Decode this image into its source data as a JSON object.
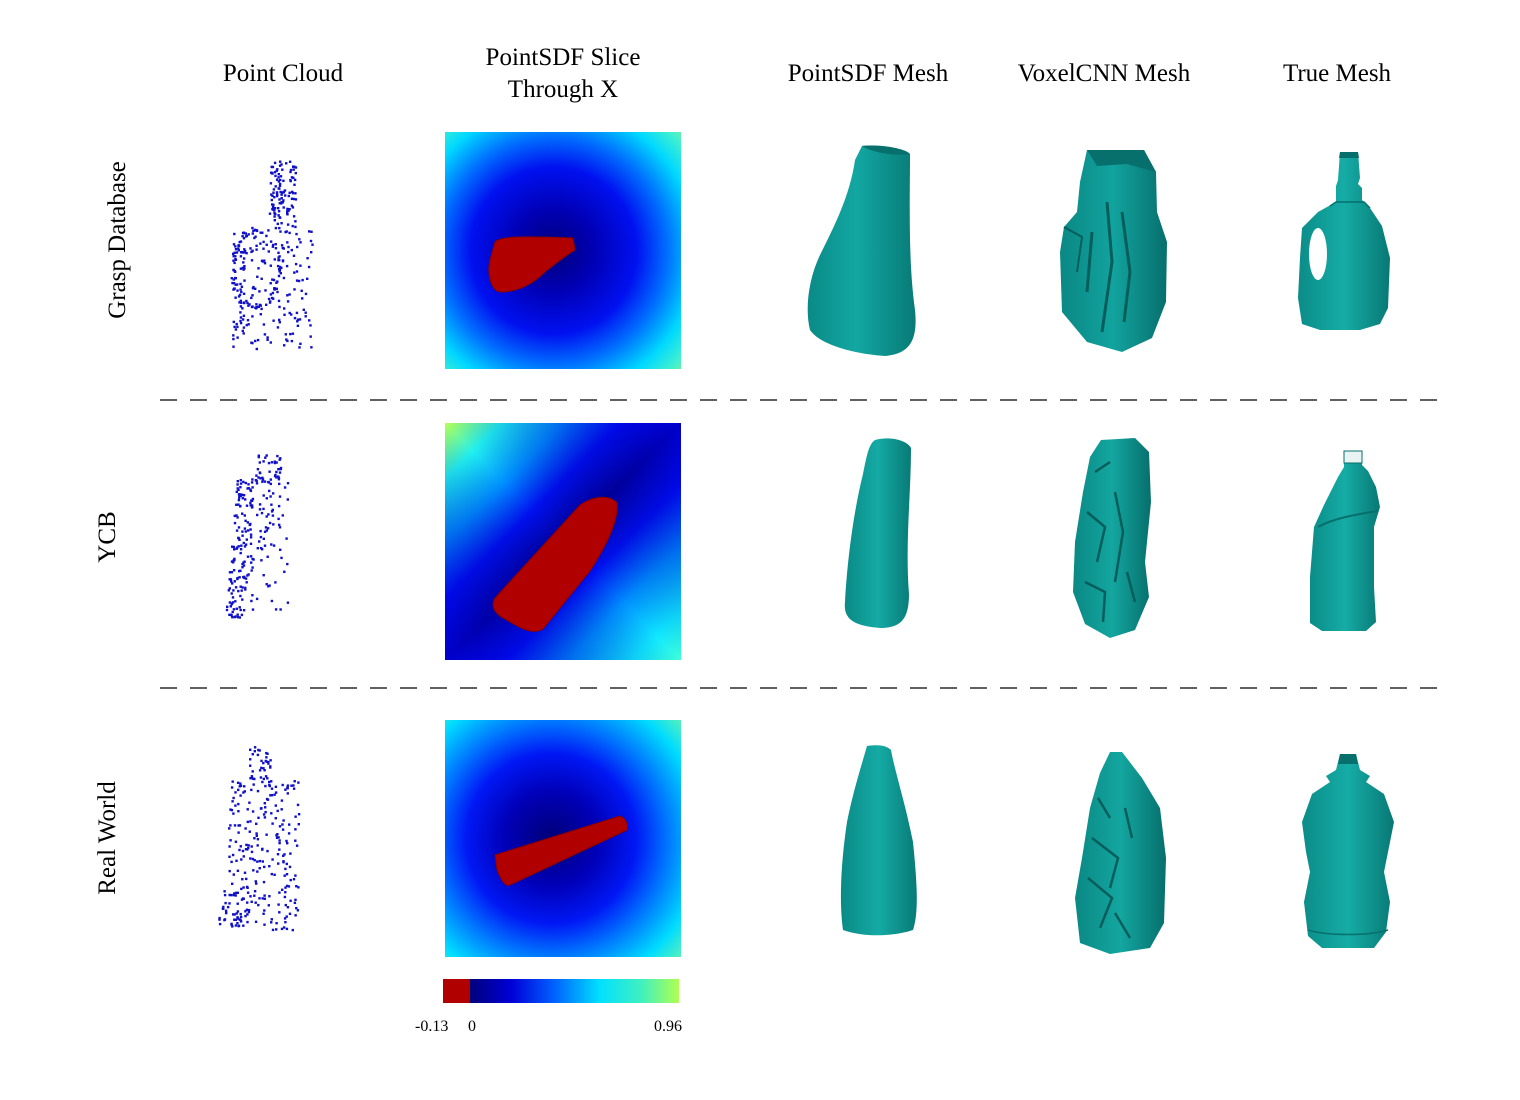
{
  "columns": {
    "point_cloud": "Point Cloud",
    "slice_line1": "PointSDF Slice",
    "slice_line2": "Through X",
    "pointsdf_mesh": "PointSDF Mesh",
    "voxelcnn_mesh": "VoxelCNN Mesh",
    "true_mesh": "True Mesh"
  },
  "rows": {
    "grasp": "Grasp Database",
    "ycb": "YCB",
    "real": "Real World"
  },
  "colorbar": {
    "min_label": "-0.13",
    "zero_label": "0",
    "max_label": "0.96"
  },
  "colors": {
    "points": "#1010c8",
    "mesh": "#0f9a96",
    "mesh_dark": "#076f6c",
    "inside": "#b00000"
  }
}
